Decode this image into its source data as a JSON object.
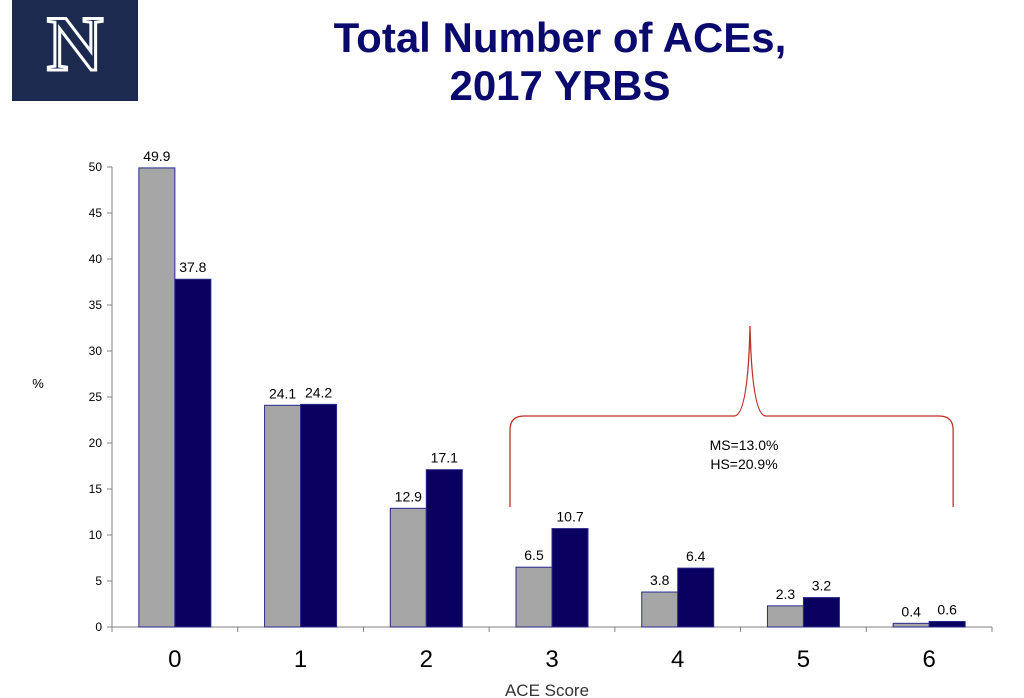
{
  "header": {
    "logo_letter": "N",
    "title_line1": "Total Number of ACEs,",
    "title_line2": "2017 YRBS"
  },
  "chart_data": {
    "type": "bar",
    "title": "Total Number of ACEs, 2017 YRBS",
    "xlabel": "ACE Score",
    "ylabel": "%",
    "categories": [
      "0",
      "1",
      "2",
      "3",
      "4",
      "5",
      "6"
    ],
    "ylim": [
      0,
      50
    ],
    "yticks": [
      0,
      5,
      10,
      15,
      20,
      25,
      30,
      35,
      40,
      45,
      50
    ],
    "grid": false,
    "legend": "none",
    "series": [
      {
        "color": "#a6a6a6",
        "values": [
          49.9,
          24.1,
          12.9,
          6.5,
          3.8,
          2.3,
          0.4
        ],
        "labels": [
          "49.9",
          "24.1",
          "12.9",
          "6.5",
          "3.8",
          "2.3",
          "0.4"
        ]
      },
      {
        "color": "#0a0060",
        "values": [
          37.8,
          24.2,
          17.1,
          10.7,
          6.4,
          3.2,
          0.6
        ],
        "labels": [
          "37.8",
          "24.2",
          "17.1",
          "10.7",
          "6.4",
          "3.2",
          "0.6"
        ]
      }
    ],
    "annotation": {
      "lines": [
        "MS=13.0%",
        "HS=20.9%"
      ],
      "spans_categories": [
        "3",
        "6"
      ],
      "color": "#c0302a"
    }
  }
}
